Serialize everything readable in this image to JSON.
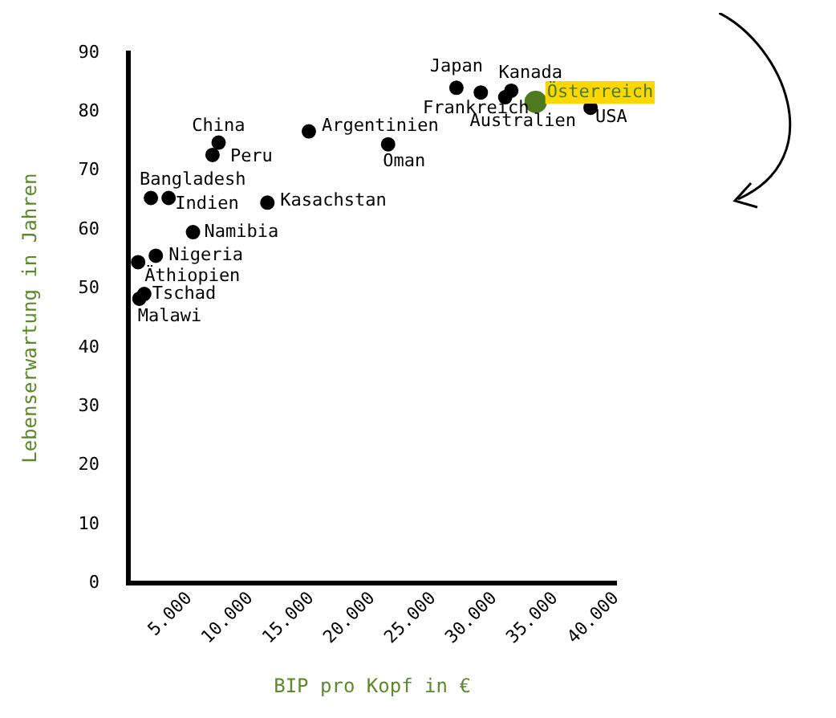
{
  "chart_data": {
    "type": "scatter",
    "xlabel": "BIP pro Kopf in €",
    "ylabel": "Lebenserwartung in Jahren",
    "series": [
      {
        "color": "#000000",
        "x": [
          26900,
          28900,
          31400,
          30900,
          37900,
          14800,
          21300,
          7400,
          6900,
          1850,
          3300,
          11400,
          5300,
          2250,
          800,
          1300,
          900
        ],
        "values": [
          84.1,
          83.3,
          83.6,
          82.5,
          80.7,
          76.7,
          74.5,
          74.8,
          72.7,
          65.4,
          65.4,
          64.6,
          59.6,
          55.6,
          54.5,
          49.1,
          48.3
        ]
      },
      {
        "color": "#4e7a1f",
        "x": [
          33400
        ],
        "values": [
          81.7
        ]
      }
    ],
    "annotations": [
      {
        "text": "Japan",
        "x": 26900,
        "y": 84.1
      },
      {
        "text": "Frankreich",
        "x": 28900,
        "y": 83.3
      },
      {
        "text": "Kanada",
        "x": 31400,
        "y": 83.6
      },
      {
        "text": "Australien",
        "x": 30900,
        "y": 82.5
      },
      {
        "text": "Österreich",
        "x": 33400,
        "y": 81.7
      },
      {
        "text": "USA",
        "x": 37900,
        "y": 80.7
      },
      {
        "text": "Argentinien",
        "x": 14800,
        "y": 76.7
      },
      {
        "text": "Oman",
        "x": 21300,
        "y": 74.5
      },
      {
        "text": "China",
        "x": 7400,
        "y": 74.8
      },
      {
        "text": "Peru",
        "x": 6900,
        "y": 72.7
      },
      {
        "text": "Bangladesh",
        "x": 1850,
        "y": 65.4
      },
      {
        "text": "Indien",
        "x": 3300,
        "y": 65.4
      },
      {
        "text": "Kasachstan",
        "x": 11400,
        "y": 64.6
      },
      {
        "text": "Namibia",
        "x": 5300,
        "y": 59.6
      },
      {
        "text": "Nigeria",
        "x": 2250,
        "y": 55.6
      },
      {
        "text": "Äthiopien",
        "x": 800,
        "y": 54.5
      },
      {
        "text": "Tschad",
        "x": 1300,
        "y": 49.1
      },
      {
        "text": "Malawi",
        "x": 900,
        "y": 48.3
      }
    ],
    "xlim": [
      0,
      40000
    ],
    "xticks": [
      {
        "value": 5000,
        "label": "5.000"
      },
      {
        "value": 10000,
        "label": "10.000"
      },
      {
        "value": 15000,
        "label": "15.000"
      },
      {
        "value": 20000,
        "label": "20.000"
      },
      {
        "value": 25000,
        "label": "25.000"
      },
      {
        "value": 30000,
        "label": "30.000"
      },
      {
        "value": 35000,
        "label": "35.000"
      },
      {
        "value": 40000,
        "label": "40.000"
      }
    ],
    "ylim": [
      0,
      90
    ],
    "yticks": [
      0,
      10,
      20,
      30,
      40,
      50,
      60,
      70,
      80,
      90
    ],
    "grid": false,
    "legend": false,
    "marker": "circle"
  }
}
